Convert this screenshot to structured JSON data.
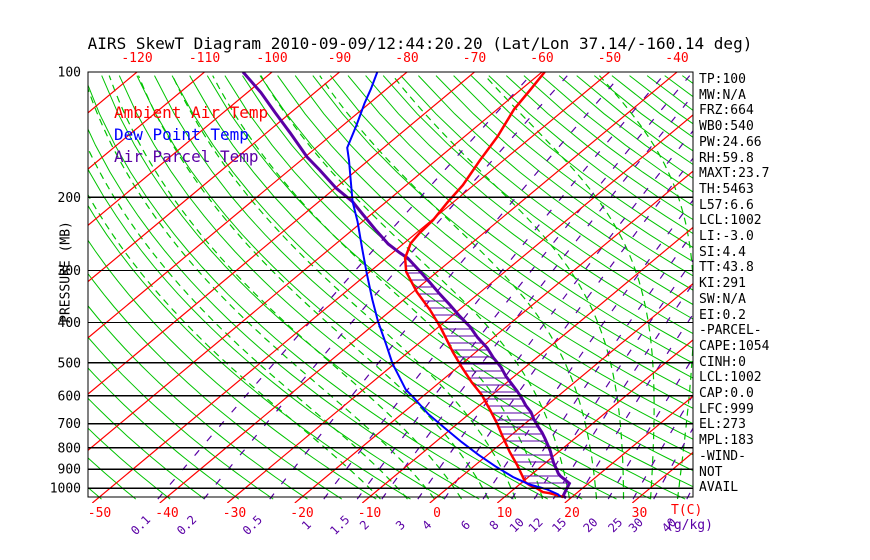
{
  "title": "AIRS SkewT Diagram 2010-09-09/12:44:20.20 (Lat/Lon 37.14/-160.14 deg)",
  "colors": {
    "ambient": "#FF0000",
    "dewpoint": "#0000FF",
    "parcel": "#5A00A5",
    "isotherm": "#FF0000",
    "adiabat": "#00C300",
    "mixing": "#5A00A5",
    "grid": "#000000"
  },
  "legend": {
    "ambient": "Ambient Air Temp",
    "dewpoint": "Dew Point Temp",
    "parcel": "Air Parcel Temp"
  },
  "axis": {
    "pressure_title": "PRESSURE (MB)",
    "pressure_ticks": [
      100,
      200,
      300,
      400,
      500,
      600,
      700,
      800,
      900,
      1000
    ],
    "top_temp_ticks": [
      -120,
      -110,
      -100,
      -90,
      -80,
      -70,
      -60,
      -50,
      -40
    ],
    "bottom_temp_ticks": [
      -50,
      -40,
      -30,
      -20,
      -10,
      0,
      10,
      20,
      30
    ],
    "temp_unit_label": "T(C)",
    "mix_unit_label": "(g/kg)",
    "mixing_ratio_labels": [
      "0.1",
      "0.2",
      "0.5",
      "1",
      "1.5",
      "2",
      "3",
      "4",
      "6",
      "8",
      "10",
      "12",
      "15",
      "20",
      "25",
      "30",
      "40"
    ]
  },
  "stats": [
    "TP:100",
    "MW:N/A",
    "FRZ:664",
    "WB0:540",
    "PW:24.66",
    "RH:59.8",
    "MAXT:23.7",
    "TH:5463",
    "L57:6.6",
    "LCL:1002",
    "LI:-3.0",
    "SI:4.4",
    "TT:43.8",
    "KI:291",
    "SW:N/A",
    "EI:0.2",
    "-PARCEL-",
    "CAPE:1054",
    "CINH:0",
    "LCL:1002",
    "CAP:0.0",
    "LFC:999",
    "EL:273",
    "MPL:183",
    "-WIND-",
    "NOT",
    "AVAIL"
  ],
  "chart_data": {
    "type": "line",
    "title": "AIRS Skew-T / log-p sounding",
    "x_axis": {
      "label": "T(C)",
      "bottom_range": [
        -52,
        38
      ],
      "skewed": true
    },
    "y_axis": {
      "label": "PRESSURE (MB)",
      "scale": "log",
      "range": [
        100,
        1050
      ]
    },
    "grid": {
      "isotherms_c": {
        "start": -120,
        "end": 40,
        "step": 10
      },
      "dry_adiabats_k": {
        "start": 210,
        "end": 460,
        "step": 5
      },
      "moist_adiabats_start_c": {
        "start": -8,
        "end": 40,
        "step": 4
      },
      "mixing_ratio_g_kg": [
        0.1,
        0.2,
        0.5,
        1,
        1.5,
        2,
        3,
        4,
        6,
        8,
        10,
        12,
        15,
        20,
        25,
        30,
        40
      ]
    },
    "series": [
      {
        "name": "Ambient Air Temp",
        "color_key": "ambient",
        "points_p_t": [
          [
            100,
            -59.6
          ],
          [
            110,
            -58.6
          ],
          [
            123,
            -57.5
          ],
          [
            143,
            -55.1
          ],
          [
            163,
            -53.5
          ],
          [
            187,
            -51.6
          ],
          [
            206,
            -50.8
          ],
          [
            227,
            -49.8
          ],
          [
            244,
            -49.5
          ],
          [
            258,
            -49.0
          ],
          [
            280,
            -47.2
          ],
          [
            302,
            -44.6
          ],
          [
            338,
            -39.4
          ],
          [
            373,
            -34.3
          ],
          [
            412,
            -29.5
          ],
          [
            471,
            -23.4
          ],
          [
            512,
            -19.4
          ],
          [
            556,
            -15.3
          ],
          [
            597,
            -11.5
          ],
          [
            649,
            -7.6
          ],
          [
            697,
            -4.3
          ],
          [
            757,
            -0.7
          ],
          [
            819,
            2.8
          ],
          [
            880,
            6.2
          ],
          [
            945,
            9.4
          ],
          [
            967,
            10.4
          ],
          [
            983,
            11.6
          ],
          [
            1000,
            13.2
          ],
          [
            1022,
            14.8
          ],
          [
            1028,
            16.0
          ],
          [
            1039,
            17.4
          ],
          [
            1050,
            18.7
          ]
        ]
      },
      {
        "name": "Dew Point Temp",
        "color_key": "dewpoint",
        "points_p_t": [
          [
            100,
            -84.4
          ],
          [
            110,
            -82.3
          ],
          [
            119,
            -80.7
          ],
          [
            135,
            -77.9
          ],
          [
            152,
            -75.4
          ],
          [
            163,
            -72.9
          ],
          [
            182,
            -69.1
          ],
          [
            205,
            -65.0
          ],
          [
            229,
            -60.7
          ],
          [
            266,
            -55.2
          ],
          [
            306,
            -50.0
          ],
          [
            352,
            -44.7
          ],
          [
            398,
            -39.9
          ],
          [
            451,
            -34.7
          ],
          [
            502,
            -30.3
          ],
          [
            543,
            -26.7
          ],
          [
            580,
            -23.7
          ],
          [
            605,
            -21.2
          ],
          [
            664,
            -16.0
          ],
          [
            715,
            -11.3
          ],
          [
            775,
            -6.1
          ],
          [
            831,
            -1.4
          ],
          [
            886,
            3.2
          ],
          [
            940,
            7.7
          ],
          [
            980,
            11.5
          ],
          [
            1006,
            14.9
          ],
          [
            1035,
            17.5
          ],
          [
            1050,
            18.3
          ]
        ]
      },
      {
        "name": "Air Parcel Temp",
        "color_key": "parcel",
        "points_p_t": [
          [
            100,
            -104.3
          ],
          [
            112,
            -98.0
          ],
          [
            125,
            -92.4
          ],
          [
            140,
            -86.5
          ],
          [
            160,
            -79.7
          ],
          [
            172,
            -75.5
          ],
          [
            190,
            -69.9
          ],
          [
            205,
            -65.0
          ],
          [
            220,
            -61.2
          ],
          [
            239,
            -56.7
          ],
          [
            259,
            -52.2
          ],
          [
            272,
            -48.9
          ],
          [
            280,
            -46.8
          ],
          [
            302,
            -42.5
          ],
          [
            321,
            -39.1
          ],
          [
            342,
            -35.6
          ],
          [
            363,
            -32.2
          ],
          [
            386,
            -28.8
          ],
          [
            410,
            -25.3
          ],
          [
            434,
            -22.4
          ],
          [
            460,
            -19.1
          ],
          [
            486,
            -16.4
          ],
          [
            512,
            -13.6
          ],
          [
            538,
            -11.3
          ],
          [
            561,
            -9.1
          ],
          [
            585,
            -6.9
          ],
          [
            613,
            -4.6
          ],
          [
            633,
            -3.1
          ],
          [
            656,
            -1.2
          ],
          [
            681,
            0.4
          ],
          [
            709,
            2.3
          ],
          [
            735,
            4.1
          ],
          [
            758,
            5.5
          ],
          [
            786,
            7.1
          ],
          [
            814,
            8.6
          ],
          [
            839,
            9.8
          ],
          [
            869,
            11.2
          ],
          [
            899,
            12.7
          ],
          [
            922,
            13.8
          ],
          [
            936,
            14.6
          ],
          [
            950,
            15.6
          ],
          [
            974,
            17.2
          ],
          [
            1044,
            18.5
          ],
          [
            1055,
            19.3
          ]
        ]
      }
    ],
    "cape_hatch_between": [
      "Ambient Air Temp",
      "Air Parcel Temp"
    ],
    "hatch_pressure_range_mb": [
      280,
      1010
    ],
    "annotations": {
      "EL_mb": 273,
      "LFC_mb": 999,
      "CAPE_j_kg": 1054
    }
  }
}
